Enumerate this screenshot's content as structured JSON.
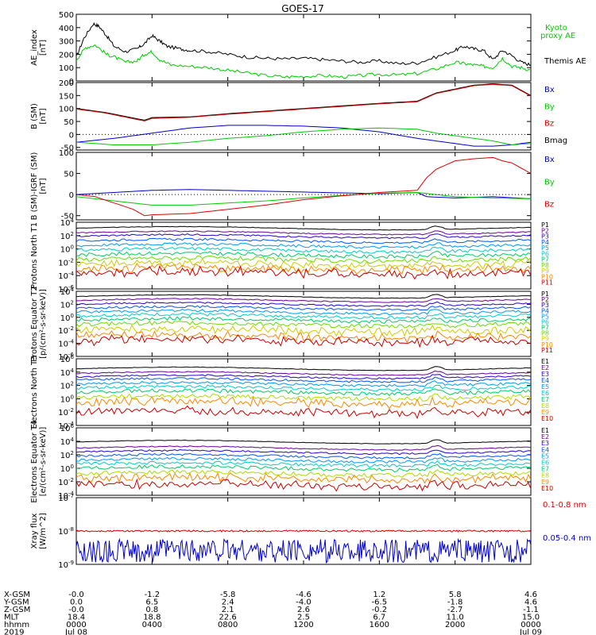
{
  "title": "GOES-17",
  "colors": {
    "black": "#000000",
    "green": "#00cc00",
    "red": "#dd0000",
    "blue": "#0000cc",
    "p": [
      "#000000",
      "#6a0099",
      "#2a00d4",
      "#0055ff",
      "#0099ff",
      "#00cccc",
      "#00cc66",
      "#66dd00",
      "#cccc00",
      "#ff8800",
      "#cc0000"
    ],
    "e": [
      "#000000",
      "#6a0099",
      "#2a00d4",
      "#0055ff",
      "#0099ff",
      "#00cccc",
      "#00cc66",
      "#aadd00",
      "#ff8800",
      "#cc0000",
      "#aa0000"
    ]
  },
  "chart_data": [
    {
      "type": "line",
      "ylabel": "AE_index [nT]",
      "yticks": [
        "500",
        "400",
        "300",
        "200",
        "100",
        "0"
      ],
      "ylim": [
        0,
        500
      ],
      "legend": [
        {
          "label": "Kyoto",
          "color": "#00cc00"
        },
        {
          "label": "proxy AE",
          "color": "#00cc00"
        },
        {
          "label": "Themis AE",
          "color": "#000000"
        }
      ],
      "series": [
        {
          "name": "Themis AE",
          "color": "#000000",
          "x": [
            0,
            0.4,
            0.9,
            1.2,
            1.6,
            2.0,
            2.6,
            3.2,
            3.6,
            4.0,
            4.4,
            4.8,
            5.5,
            6,
            7,
            8,
            9,
            10,
            11,
            12,
            13,
            14,
            15,
            16,
            17,
            18,
            19,
            20,
            20.5,
            21,
            21.5,
            22,
            22.5,
            23,
            23.5,
            24
          ],
          "y": [
            180,
            320,
            430,
            410,
            340,
            260,
            220,
            240,
            280,
            340,
            300,
            260,
            240,
            230,
            220,
            200,
            180,
            170,
            165,
            170,
            160,
            150,
            140,
            150,
            130,
            135,
            180,
            230,
            260,
            240,
            230,
            160,
            230,
            190,
            140,
            120
          ]
        },
        {
          "name": "Kyoto proxy AE",
          "color": "#00cc00",
          "x": [
            0,
            0.5,
            1.0,
            1.6,
            2.0,
            2.6,
            3.2,
            3.6,
            4.0,
            4.4,
            5,
            6,
            7,
            8,
            9,
            10,
            11,
            12,
            13,
            14,
            15,
            16,
            17,
            18,
            19,
            20,
            20.5,
            21,
            21.5,
            22,
            22.5,
            23,
            23.5,
            24
          ],
          "y": [
            160,
            250,
            270,
            200,
            180,
            140,
            150,
            200,
            220,
            160,
            120,
            110,
            100,
            80,
            60,
            40,
            30,
            35,
            40,
            30,
            40,
            50,
            45,
            55,
            90,
            140,
            130,
            120,
            110,
            100,
            170,
            110,
            100,
            80
          ]
        }
      ]
    },
    {
      "type": "line",
      "ylabel": "B (SM) [nT]",
      "yticks": [
        "200",
        "150",
        "100",
        "50",
        "0",
        "-50"
      ],
      "ylim": [
        -60,
        200
      ],
      "legend": [
        {
          "label": "Bx",
          "color": "#0000cc"
        },
        {
          "label": "By",
          "color": "#00cc00"
        },
        {
          "label": "Bz",
          "color": "#dd0000"
        },
        {
          "label": "Bmag",
          "color": "#000000"
        }
      ],
      "series": [
        {
          "name": "Bmag",
          "color": "#000000",
          "x": [
            0,
            1.5,
            3.6,
            4,
            6,
            8,
            10,
            12,
            14,
            16,
            18,
            19,
            20,
            21,
            22,
            23,
            24
          ],
          "y": [
            100,
            85,
            55,
            65,
            68,
            80,
            90,
            100,
            110,
            120,
            128,
            160,
            175,
            190,
            195,
            190,
            150
          ]
        },
        {
          "name": "Bz",
          "color": "#dd0000",
          "x": [
            0,
            1.5,
            3.6,
            4,
            6,
            8,
            10,
            12,
            14,
            16,
            18,
            19,
            20,
            21,
            22,
            23,
            24
          ],
          "y": [
            98,
            83,
            52,
            62,
            66,
            78,
            88,
            98,
            108,
            118,
            126,
            158,
            173,
            188,
            193,
            188,
            148
          ]
        },
        {
          "name": "Bx",
          "color": "#0000cc",
          "x": [
            0,
            2,
            4,
            6,
            8,
            10,
            12,
            14,
            16,
            18,
            19,
            20,
            21,
            22,
            23,
            24
          ],
          "y": [
            -30,
            -15,
            5,
            25,
            35,
            35,
            32,
            25,
            10,
            -15,
            -25,
            -35,
            -45,
            -45,
            -40,
            -30
          ]
        },
        {
          "name": "By",
          "color": "#00cc00",
          "x": [
            0,
            2,
            4,
            6,
            8,
            10,
            12,
            14,
            16,
            18,
            19,
            20,
            21,
            22,
            23,
            24
          ],
          "y": [
            -30,
            -40,
            -40,
            -30,
            -15,
            -5,
            10,
            20,
            25,
            20,
            5,
            -5,
            -15,
            -25,
            -40,
            -35
          ]
        }
      ]
    },
    {
      "type": "line",
      "ylabel": "B (SM)-IGRF (SM) [nT]",
      "yticks": [
        "100",
        "50",
        "0",
        "-50"
      ],
      "ylim": [
        -60,
        100
      ],
      "legend": [
        {
          "label": "Bx",
          "color": "#0000cc"
        },
        {
          "label": "By",
          "color": "#00cc00"
        },
        {
          "label": "Bz",
          "color": "#dd0000"
        }
      ],
      "series": [
        {
          "name": "Bx",
          "color": "#0000cc",
          "x": [
            0,
            2,
            4,
            6,
            8,
            10,
            12,
            14,
            16,
            18,
            18.5,
            20,
            22,
            24
          ],
          "y": [
            0,
            5,
            10,
            12,
            10,
            8,
            6,
            4,
            2,
            5,
            -5,
            -8,
            -5,
            -10
          ]
        },
        {
          "name": "By",
          "color": "#00cc00",
          "x": [
            0,
            2,
            4,
            6,
            8,
            10,
            12,
            14,
            16,
            18,
            20,
            22,
            24
          ],
          "y": [
            -5,
            -15,
            -25,
            -25,
            -20,
            -15,
            -8,
            -2,
            3,
            5,
            -5,
            -8,
            -10
          ]
        },
        {
          "name": "Bz",
          "color": "#dd0000",
          "x": [
            0,
            1,
            2,
            3,
            3.6,
            4,
            6,
            8,
            10,
            12,
            14,
            16,
            18,
            18.5,
            19,
            20,
            21,
            22,
            22.5,
            23,
            24
          ],
          "y": [
            0,
            -5,
            -20,
            -35,
            -50,
            -48,
            -45,
            -35,
            -25,
            -12,
            -3,
            5,
            10,
            40,
            60,
            80,
            85,
            88,
            80,
            75,
            50
          ]
        }
      ]
    },
    {
      "type": "line",
      "log": true,
      "ylabel": "Protons North T1",
      "yticks": [
        "10^4",
        "10^2",
        "10^0",
        "10^-2",
        "10^-4",
        "10^-6"
      ],
      "ylim": [
        -6,
        4
      ],
      "legend": [
        "P1",
        "P2",
        "P3",
        "P4",
        "P5",
        "P6",
        "P7",
        "P8",
        "P9",
        "P10",
        "P11"
      ],
      "levels": [
        3.1,
        2.4,
        1.9,
        1.2,
        0.5,
        -0.2,
        -0.9,
        -1.6,
        -2.3,
        -3.0,
        -3.6
      ]
    },
    {
      "type": "line",
      "log": true,
      "ylabel": "Protons Equator T2 [p/(cm²-s-sr-keV)]",
      "yticks": [
        "10^4",
        "10^2",
        "10^0",
        "10^-2",
        "10^-4",
        "10^-6"
      ],
      "ylim": [
        -6,
        4
      ],
      "legend": [
        "P1",
        "P2",
        "P3",
        "P4",
        "P5",
        "P6",
        "P7",
        "P8",
        "P9",
        "P10",
        "P11"
      ],
      "levels": [
        3.2,
        2.6,
        2.0,
        1.4,
        0.8,
        0.2,
        -0.4,
        -1.1,
        -2.0,
        -2.9,
        -3.6
      ]
    },
    {
      "type": "line",
      "log": true,
      "ylabel": "Electrons North T3",
      "yticks": [
        "10^6",
        "10^4",
        "10^2",
        "10^0",
        "10^-2",
        "10^-4"
      ],
      "ylim": [
        -4,
        6
      ],
      "legend": [
        "E1",
        "E2",
        "E3",
        "E4",
        "E5",
        "E6",
        "E7",
        "E8",
        "E9",
        "E10"
      ],
      "levels": [
        4.5,
        3.8,
        3.3,
        2.8,
        2.2,
        1.6,
        1.0,
        0.2,
        -0.6,
        -2.0
      ]
    },
    {
      "type": "line",
      "log": true,
      "ylabel": "Electrons Equator T4 [e/(cm²-s-sr-keV)]",
      "yticks": [
        "10^6",
        "10^4",
        "10^2",
        "10^0",
        "10^-2",
        "10^-4"
      ],
      "ylim": [
        -4,
        6
      ],
      "legend": [
        "E1",
        "E2",
        "E3",
        "E4",
        "E5",
        "E6",
        "E7",
        "E8",
        "E9",
        "E10"
      ],
      "levels": [
        3.9,
        3.0,
        2.4,
        1.8,
        1.2,
        0.6,
        0.0,
        -0.8,
        -1.5,
        -2.5
      ]
    },
    {
      "type": "line",
      "log": true,
      "ylabel": "Xray flux [W/m^2]",
      "yticks": [
        "10^-7",
        "10^-8",
        "10^-9"
      ],
      "ylim": [
        -9,
        -7
      ],
      "legend": [
        {
          "label": "0.1-0.8 nm",
          "color": "#dd0000"
        },
        {
          "label": "0.05-0.4 nm",
          "color": "#0000cc"
        }
      ],
      "levels": [
        -8.0,
        -8.6
      ]
    }
  ],
  "xaxis": {
    "row_labels": [
      "X-GSM",
      "Y-GSM",
      "Z-GSM",
      "MLT",
      "hhmm",
      "2019"
    ],
    "columns": [
      {
        "X-GSM": "-0.0",
        "Y-GSM": "0.0",
        "Z-GSM": "-0.0",
        "MLT": "18.4",
        "hhmm": "0000",
        "date": "Jul 08"
      },
      {
        "X-GSM": "-1.2",
        "Y-GSM": "6.5",
        "Z-GSM": "0.8",
        "MLT": "18.8",
        "hhmm": "0400",
        "date": ""
      },
      {
        "X-GSM": "-5.8",
        "Y-GSM": "2.4",
        "Z-GSM": "2.1",
        "MLT": "22.6",
        "hhmm": "0800",
        "date": ""
      },
      {
        "X-GSM": "-4.6",
        "Y-GSM": "-4.0",
        "Z-GSM": "2.6",
        "MLT": "2.5",
        "hhmm": "1200",
        "date": ""
      },
      {
        "X-GSM": "1.2",
        "Y-GSM": "-6.5",
        "Z-GSM": "-0.2",
        "MLT": "6.7",
        "hhmm": "1600",
        "date": ""
      },
      {
        "X-GSM": "5.8",
        "Y-GSM": "-1.8",
        "Z-GSM": "-2.7",
        "MLT": "11.0",
        "hhmm": "2000",
        "date": ""
      },
      {
        "X-GSM": "4.6",
        "Y-GSM": "4.6",
        "Z-GSM": "-1.1",
        "MLT": "15.0",
        "hhmm": "0000",
        "date": "Jul 09"
      }
    ]
  }
}
